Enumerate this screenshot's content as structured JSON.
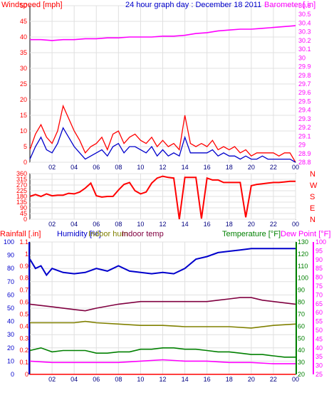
{
  "header": {
    "windspeed_label": "Windspeed [mph]",
    "title": "24 hour graph day : December 18 2011",
    "barometer_label": "Barometer [.in]"
  },
  "lower_labels": {
    "rainfall": "Rainfall [.in]",
    "humidity": "Humidity [%]",
    "indoor_hum": "Indoor hum",
    "indoor_temp": "Indoor temp",
    "temperature": "Temperature [°F]",
    "dew_point": "Dew Point [°F]"
  },
  "colors": {
    "wind_gust": "#ff0000",
    "wind_avg": "#0000cc",
    "barometer": "#ff00ff",
    "direction": "#ff0000",
    "rainfall": "#ff0000",
    "humidity": "#0000cc",
    "indoor_hum": "#808000",
    "indoor_temp": "#800040",
    "temperature": "#008000",
    "dew_point": "#ff00ff",
    "gridline": "#e0e0e0"
  },
  "chart_data": [
    {
      "type": "line",
      "panel": "wind_barometer",
      "x_ticks": [
        "02",
        "04",
        "06",
        "08",
        "10",
        "12",
        "14",
        "16",
        "18",
        "20",
        "22",
        "00"
      ],
      "y_left": {
        "label": "Windspeed [mph]",
        "ylim": [
          0,
          50
        ],
        "ticks": [
          0,
          5,
          10,
          15,
          20,
          25,
          30,
          35,
          40,
          45,
          50
        ]
      },
      "y_right": {
        "label": "Barometer [.in]",
        "ylim": [
          28.8,
          30.6
        ],
        "ticks": [
          "28.8",
          "28.9",
          "29",
          "29.1",
          "29.2",
          "29.3",
          "29.4",
          "29.5",
          "29.6",
          "29.7",
          "29.8",
          "29.9",
          "30",
          "30.1",
          "30.2",
          "30.3",
          "30.4",
          "30.5",
          "30.6"
        ]
      },
      "series": [
        {
          "key": "gust",
          "axis": "left",
          "x": [
            0,
            0.5,
            1,
            1.5,
            2,
            2.5,
            3,
            3.5,
            4,
            4.5,
            5,
            5.5,
            6,
            6.5,
            7,
            7.5,
            8,
            8.5,
            9,
            9.5,
            10,
            10.5,
            11,
            11.5,
            12,
            12.5,
            13,
            13.5,
            14,
            14.5,
            15,
            15.5,
            16,
            16.5,
            17,
            17.5,
            18,
            18.5,
            19,
            19.5,
            20,
            20.5,
            21,
            21.5,
            22,
            22.5,
            23,
            23.5,
            24
          ],
          "values": [
            4,
            9,
            12,
            8,
            6,
            10,
            18,
            14,
            10,
            7,
            3,
            5,
            6,
            8,
            4,
            9,
            10,
            6,
            8,
            9,
            7,
            6,
            8,
            5,
            7,
            5,
            6,
            4,
            15,
            6,
            5,
            6,
            5,
            7,
            4,
            5,
            4,
            5,
            3,
            4,
            2,
            3,
            3,
            3,
            3,
            2,
            3,
            3,
            0
          ]
        },
        {
          "key": "avg",
          "axis": "left",
          "x": [
            0,
            0.5,
            1,
            1.5,
            2,
            2.5,
            3,
            3.5,
            4,
            4.5,
            5,
            5.5,
            6,
            6.5,
            7,
            7.5,
            8,
            8.5,
            9,
            9.5,
            10,
            10.5,
            11,
            11.5,
            12,
            12.5,
            13,
            13.5,
            14,
            14.5,
            15,
            15.5,
            16,
            16.5,
            17,
            17.5,
            18,
            18.5,
            19,
            19.5,
            20,
            20.5,
            21,
            21.5,
            22,
            22.5,
            23,
            23.5,
            24
          ],
          "values": [
            1,
            5,
            8,
            4,
            3,
            6,
            11,
            8,
            5,
            3,
            1,
            2,
            3,
            4,
            2,
            5,
            6,
            3,
            5,
            5,
            4,
            3,
            5,
            2,
            4,
            2,
            3,
            2,
            8,
            3,
            3,
            3,
            3,
            4,
            2,
            3,
            2,
            2,
            1,
            2,
            1,
            1,
            2,
            1,
            1,
            1,
            1,
            1,
            0
          ]
        },
        {
          "key": "barometer",
          "axis": "right",
          "x": [
            0,
            1,
            2,
            3,
            4,
            5,
            6,
            7,
            8,
            9,
            10,
            11,
            12,
            13,
            14,
            15,
            16,
            17,
            18,
            19,
            20,
            21,
            22,
            23,
            24
          ],
          "values": [
            30.21,
            30.21,
            30.2,
            30.21,
            30.21,
            30.22,
            30.22,
            30.23,
            30.23,
            30.24,
            30.24,
            30.24,
            30.25,
            30.25,
            30.26,
            30.28,
            30.29,
            30.31,
            30.32,
            30.33,
            30.33,
            30.34,
            30.35,
            30.36,
            30.37
          ]
        }
      ]
    },
    {
      "type": "line",
      "panel": "wind_direction",
      "x_ticks": [
        "02",
        "04",
        "06",
        "08",
        "10",
        "12",
        "14",
        "16",
        "18",
        "20",
        "22",
        "00"
      ],
      "y_left": {
        "ylim": [
          0,
          360
        ],
        "ticks": [
          0,
          45,
          90,
          135,
          180,
          225,
          270,
          315,
          360
        ]
      },
      "y_right": {
        "ticks": [
          "N",
          "W",
          "S",
          "E",
          "N"
        ]
      },
      "series": [
        {
          "key": "direction",
          "x": [
            0,
            0.5,
            1,
            1.5,
            2,
            2.5,
            3,
            3.5,
            4,
            4.5,
            5,
            5.5,
            6,
            6.5,
            7,
            7.5,
            8,
            8.5,
            9,
            9.5,
            10,
            10.5,
            11,
            11.5,
            12,
            12.5,
            13,
            13.5,
            14,
            14.5,
            15,
            15.5,
            16,
            16.5,
            17,
            17.5,
            18,
            18.5,
            19,
            19.5,
            20,
            20.5,
            21,
            21.5,
            22,
            22.5,
            23,
            23.5,
            24
          ],
          "values": [
            180,
            195,
            180,
            200,
            185,
            190,
            190,
            205,
            200,
            215,
            245,
            285,
            185,
            175,
            180,
            180,
            230,
            275,
            290,
            225,
            200,
            215,
            285,
            325,
            340,
            330,
            325,
            0,
            330,
            330,
            330,
            5,
            325,
            310,
            310,
            290,
            290,
            290,
            290,
            15,
            265,
            275,
            280,
            285,
            290,
            290,
            295,
            300,
            300
          ]
        }
      ]
    },
    {
      "type": "line",
      "panel": "lower",
      "x_ticks": [
        "02",
        "04",
        "06",
        "08",
        "10",
        "12",
        "14",
        "16",
        "18",
        "20",
        "22",
        "00"
      ],
      "y_rain": {
        "ylim": [
          0,
          1.1
        ],
        "ticks": [
          "0",
          "0.1",
          "0.2",
          "0.3",
          "0.4",
          "0.5",
          "0.6",
          "0.7",
          "0.8",
          "0.9",
          "1",
          "1.1"
        ]
      },
      "y_hum": {
        "ylim": [
          0,
          100
        ],
        "ticks": [
          0,
          10,
          20,
          30,
          40,
          50,
          60,
          70,
          80,
          90,
          100
        ]
      },
      "y_temp": {
        "ylim": [
          20,
          130
        ],
        "ticks": [
          20,
          30,
          40,
          50,
          60,
          70,
          80,
          90,
          100,
          110,
          120,
          130
        ]
      },
      "y_dew": {
        "ylim": [
          25,
          100
        ],
        "ticks": [
          25,
          30,
          35,
          40,
          45,
          50,
          55,
          60,
          65,
          70,
          75,
          80,
          85,
          90,
          95,
          100
        ]
      },
      "series": [
        {
          "key": "humidity",
          "axis": "hum",
          "x": [
            0,
            0.5,
            1,
            1.5,
            2,
            3,
            4,
            5,
            6,
            7,
            8,
            9,
            10,
            11,
            12,
            13,
            14,
            15,
            16,
            17,
            18,
            19,
            20,
            21,
            22,
            23,
            24
          ],
          "values": [
            87,
            80,
            82,
            75,
            80,
            77,
            76,
            77,
            80,
            78,
            82,
            78,
            77,
            76,
            77,
            76,
            80,
            87,
            89,
            92,
            93,
            94,
            95,
            95,
            95,
            95,
            95
          ]
        },
        {
          "key": "indoor_temp",
          "axis": "hum",
          "x": [
            0,
            2,
            4,
            5,
            6,
            8,
            10,
            12,
            14,
            16,
            17,
            18,
            19,
            20,
            21,
            22,
            23,
            24
          ],
          "values": [
            53,
            51,
            49,
            48,
            50,
            53,
            55,
            55,
            55,
            55,
            56,
            57,
            58,
            58,
            56,
            55,
            54,
            53
          ]
        },
        {
          "key": "indoor_hum",
          "axis": "hum",
          "x": [
            0,
            2,
            4,
            5,
            6,
            8,
            10,
            12,
            14,
            16,
            18,
            20,
            22,
            24
          ],
          "values": [
            39,
            39,
            39,
            40,
            39,
            38,
            37,
            37,
            36,
            36,
            36,
            35,
            37,
            38
          ]
        },
        {
          "key": "temperature",
          "axis": "hum",
          "x": [
            0,
            1,
            2,
            3,
            4,
            5,
            6,
            7,
            8,
            9,
            10,
            11,
            12,
            13,
            14,
            15,
            16,
            17,
            18,
            19,
            20,
            21,
            22,
            23,
            24
          ],
          "values": [
            18,
            20,
            17,
            18,
            18,
            18,
            16,
            16,
            17,
            17,
            19,
            19,
            20,
            20,
            19,
            19,
            18,
            17,
            17,
            16,
            15,
            15,
            14,
            13,
            13
          ]
        },
        {
          "key": "dew_point",
          "axis": "hum",
          "x": [
            0,
            2,
            4,
            6,
            8,
            10,
            12,
            14,
            16,
            18,
            20,
            22,
            24
          ],
          "values": [
            10,
            9,
            9,
            9,
            9,
            10,
            11,
            10,
            10,
            9,
            9,
            8,
            8
          ]
        },
        {
          "key": "rainfall",
          "axis": "hum",
          "x": [
            0,
            24
          ],
          "values": [
            0,
            0
          ]
        }
      ]
    }
  ]
}
